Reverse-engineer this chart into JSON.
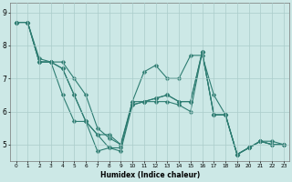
{
  "xlabel": "Humidex (Indice chaleur)",
  "bg_color": "#cce8e6",
  "grid_color": "#aaccca",
  "line_color": "#2e7d72",
  "xlim": [
    -0.5,
    23.5
  ],
  "ylim": [
    4.5,
    9.3
  ],
  "yticks": [
    5,
    6,
    7,
    8
  ],
  "ytick_extra": 9,
  "xticks": [
    0,
    1,
    2,
    3,
    4,
    5,
    6,
    7,
    8,
    9,
    10,
    11,
    12,
    13,
    14,
    15,
    16,
    17,
    18,
    19,
    20,
    21,
    22,
    23
  ],
  "lines": [
    [
      8.7,
      8.7,
      7.6,
      7.5,
      6.5,
      5.7,
      5.7,
      4.8,
      4.9,
      4.9,
      6.3,
      7.2,
      7.4,
      7.0,
      7.0,
      7.7,
      7.7,
      6.5,
      5.9,
      4.7,
      4.9,
      5.1,
      5.0,
      5.0
    ],
    [
      8.7,
      8.7,
      7.5,
      7.5,
      7.5,
      7.0,
      6.5,
      5.5,
      5.2,
      5.0,
      6.3,
      6.3,
      6.3,
      6.3,
      6.2,
      6.0,
      7.8,
      5.9,
      5.9,
      4.7,
      4.9,
      5.1,
      5.1,
      5.0
    ],
    [
      8.7,
      8.7,
      7.5,
      7.5,
      7.3,
      6.5,
      5.7,
      5.3,
      4.9,
      4.8,
      6.2,
      6.3,
      6.4,
      6.5,
      6.3,
      6.3,
      7.8,
      5.9,
      5.9,
      4.7,
      4.9,
      5.1,
      5.0,
      5.0
    ],
    [
      8.7,
      8.7,
      7.5,
      7.5,
      7.3,
      6.5,
      5.7,
      5.3,
      5.3,
      5.0,
      6.2,
      6.3,
      6.4,
      6.5,
      6.3,
      6.3,
      7.8,
      5.9,
      5.9,
      4.7,
      4.9,
      5.1,
      5.0,
      5.0
    ]
  ]
}
